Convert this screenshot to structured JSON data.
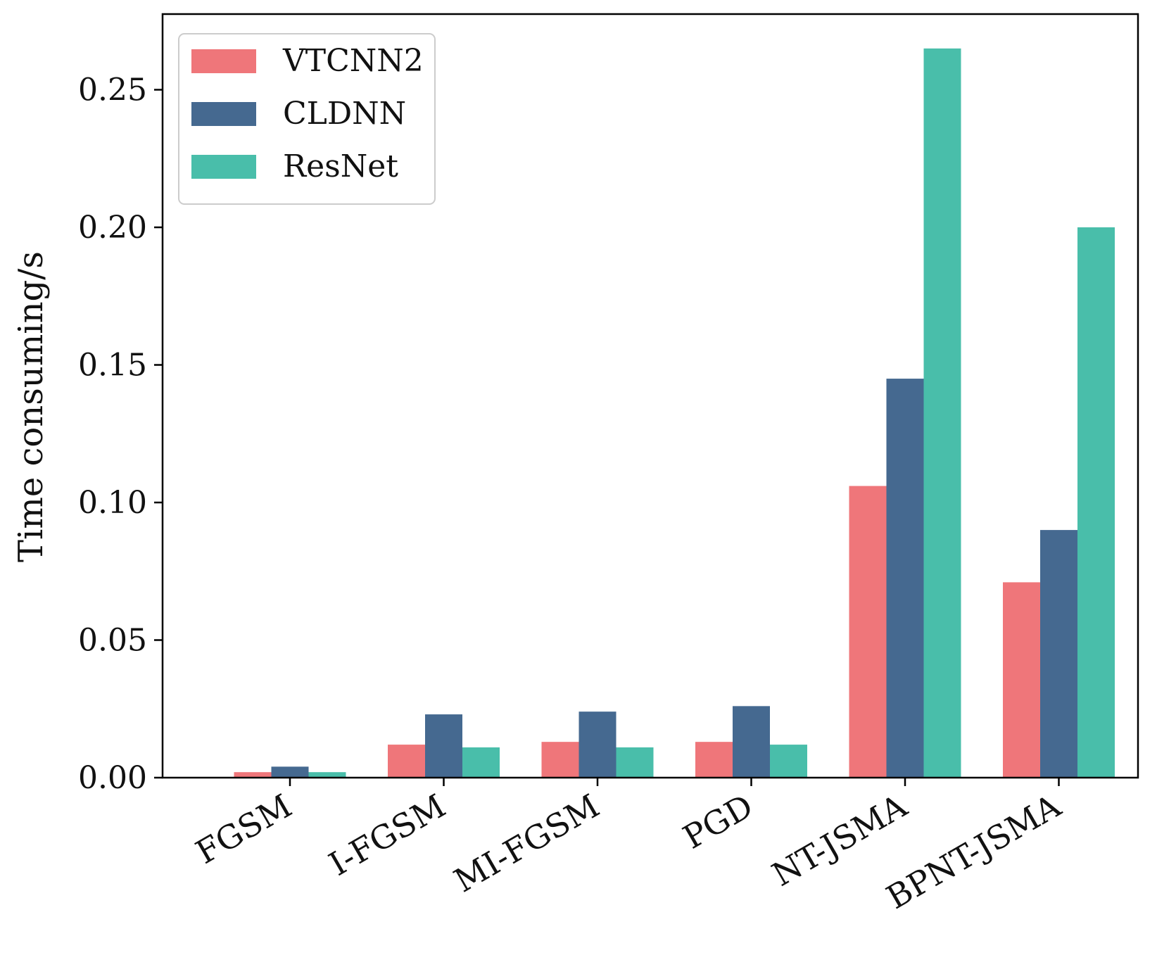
{
  "chart_data": {
    "type": "bar",
    "title": "",
    "xlabel": "",
    "ylabel": "Time consuming/s",
    "categories": [
      "FGSM",
      "I-FGSM",
      "MI-FGSM",
      "PGD",
      "NT-JSMA",
      "BPNT-JSMA"
    ],
    "series": [
      {
        "name": "VTCNN2",
        "color": "#ef767a",
        "values": [
          0.002,
          0.012,
          0.013,
          0.013,
          0.106,
          0.071
        ]
      },
      {
        "name": "CLDNN",
        "color": "#456990",
        "values": [
          0.004,
          0.023,
          0.024,
          0.026,
          0.145,
          0.09
        ]
      },
      {
        "name": "ResNet",
        "color": "#49beaa",
        "values": [
          0.002,
          0.011,
          0.011,
          0.012,
          0.265,
          0.2
        ]
      }
    ],
    "ylim": [
      0,
      0.2775
    ],
    "yticks": [
      0.0,
      0.05,
      0.1,
      0.15,
      0.2,
      0.25
    ],
    "ytick_labels": [
      "0.00",
      "0.05",
      "0.10",
      "0.15",
      "0.20",
      "0.25"
    ],
    "legend_position": "top-left",
    "grid": false
  }
}
